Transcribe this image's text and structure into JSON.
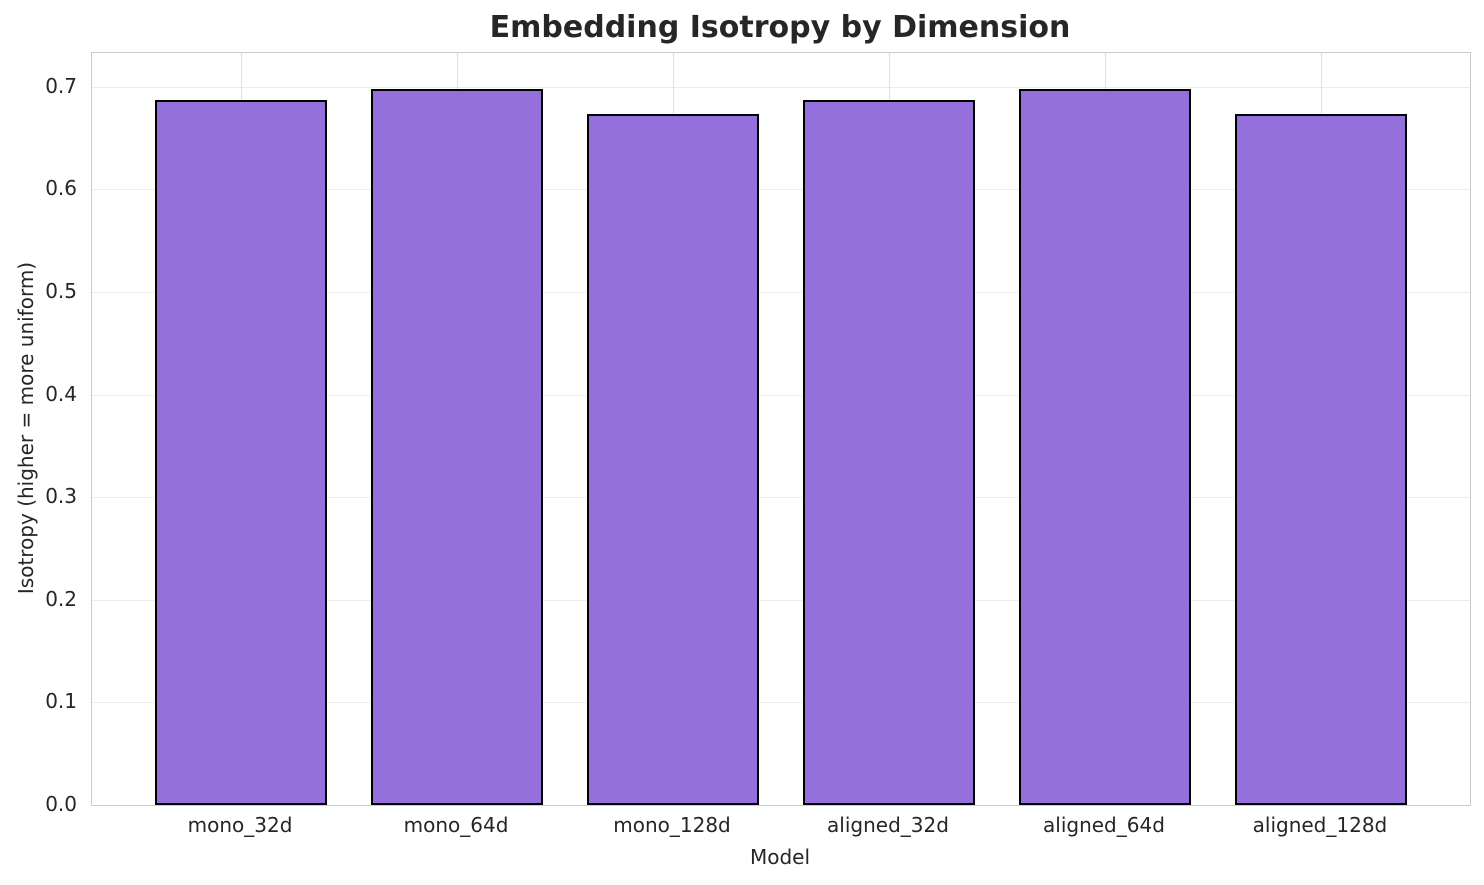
{
  "chart_data": {
    "type": "bar",
    "title": "Embedding Isotropy by Dimension",
    "xlabel": "Model",
    "ylabel": "Isotropy (higher = more uniform)",
    "categories": [
      "mono_32d",
      "mono_64d",
      "mono_128d",
      "aligned_32d",
      "aligned_64d",
      "aligned_128d"
    ],
    "values": [
      0.687,
      0.698,
      0.674,
      0.687,
      0.698,
      0.674
    ],
    "ylim": [
      0,
      0.733
    ],
    "yticks": [
      0.0,
      0.1,
      0.2,
      0.3,
      0.4,
      0.5,
      0.6,
      0.7
    ],
    "ytick_labels": [
      "0.0",
      "0.1",
      "0.2",
      "0.3",
      "0.4",
      "0.5",
      "0.6",
      "0.7"
    ],
    "grid": true,
    "legend": "none",
    "bar_color": "#9370DB",
    "bar_edge_color": "#000000",
    "grid_color": "#ececec",
    "spine_color": "#cccccc",
    "text_color": "#262626"
  }
}
